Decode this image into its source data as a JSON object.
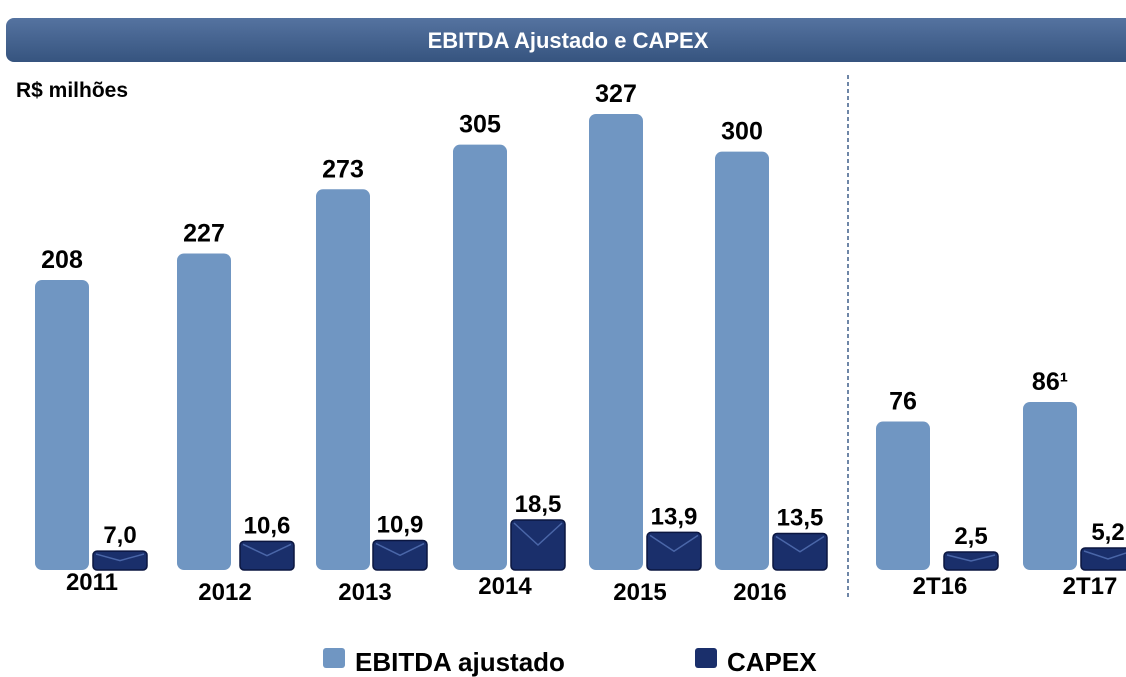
{
  "chart_data": {
    "type": "bar",
    "title": "EBITDA Ajustado e CAPEX",
    "unit_label": "R$ milhões",
    "categories": [
      "2011",
      "2012",
      "2013",
      "2014",
      "2015",
      "2016",
      "2T16",
      "2T17"
    ],
    "series": [
      {
        "name": "EBITDA ajustado",
        "color": "#7096c2",
        "values": [
          208,
          227,
          273,
          305,
          327,
          300,
          76,
          86
        ],
        "value_labels": [
          "208",
          "227",
          "273",
          "305",
          "327",
          "300",
          "76",
          "86¹"
        ]
      },
      {
        "name": "CAPEX",
        "color": "#1a2f6b",
        "values": [
          7.0,
          10.6,
          10.9,
          18.5,
          13.9,
          13.5,
          2.5,
          5.2
        ],
        "value_labels": [
          "7,0",
          "10,6",
          "10,9",
          "18,5",
          "13,9",
          "13,5",
          "2,5",
          "5,2"
        ]
      }
    ]
  }
}
